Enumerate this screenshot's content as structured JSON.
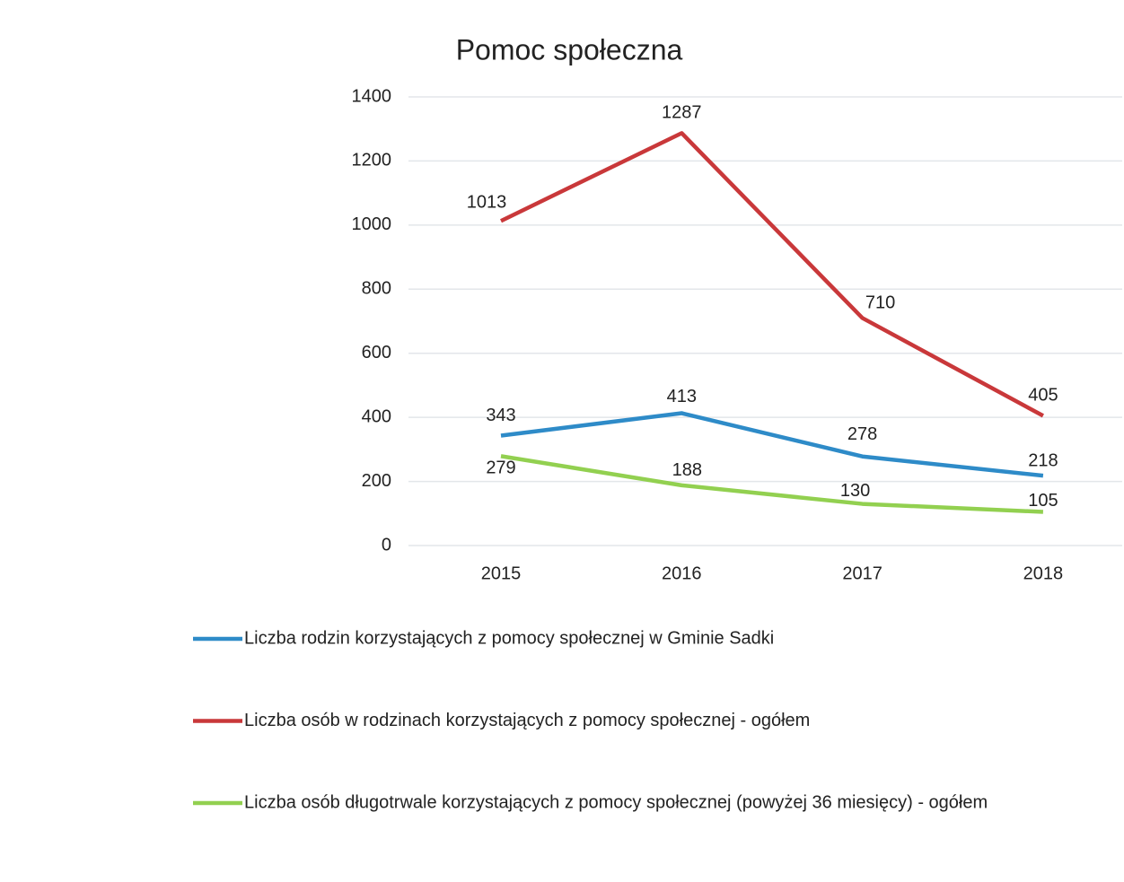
{
  "chart_data": {
    "type": "line",
    "title": "Pomoc społeczna",
    "categories": [
      "2015",
      "2016",
      "2017",
      "2018"
    ],
    "series": [
      {
        "name": "Liczba rodzin korzystających z pomocy społecznej w Gminie Sadki",
        "color": "#2e8bc8",
        "values": [
          343,
          413,
          278,
          218
        ]
      },
      {
        "name": "Liczba osób w rodzinach korzystających z pomocy społecznej - ogółem",
        "color": "#c9383a",
        "values": [
          1013,
          1287,
          710,
          405
        ]
      },
      {
        "name": "Liczba osób długotrwale korzystających z pomocy społecznej (powyżej 36 miesięcy) - ogółem",
        "color": "#92d050",
        "values": [
          279,
          188,
          130,
          105
        ]
      }
    ],
    "ylim": [
      0,
      1400
    ],
    "yticks": [
      0,
      200,
      400,
      600,
      800,
      1000,
      1200,
      1400
    ],
    "grid": true
  }
}
